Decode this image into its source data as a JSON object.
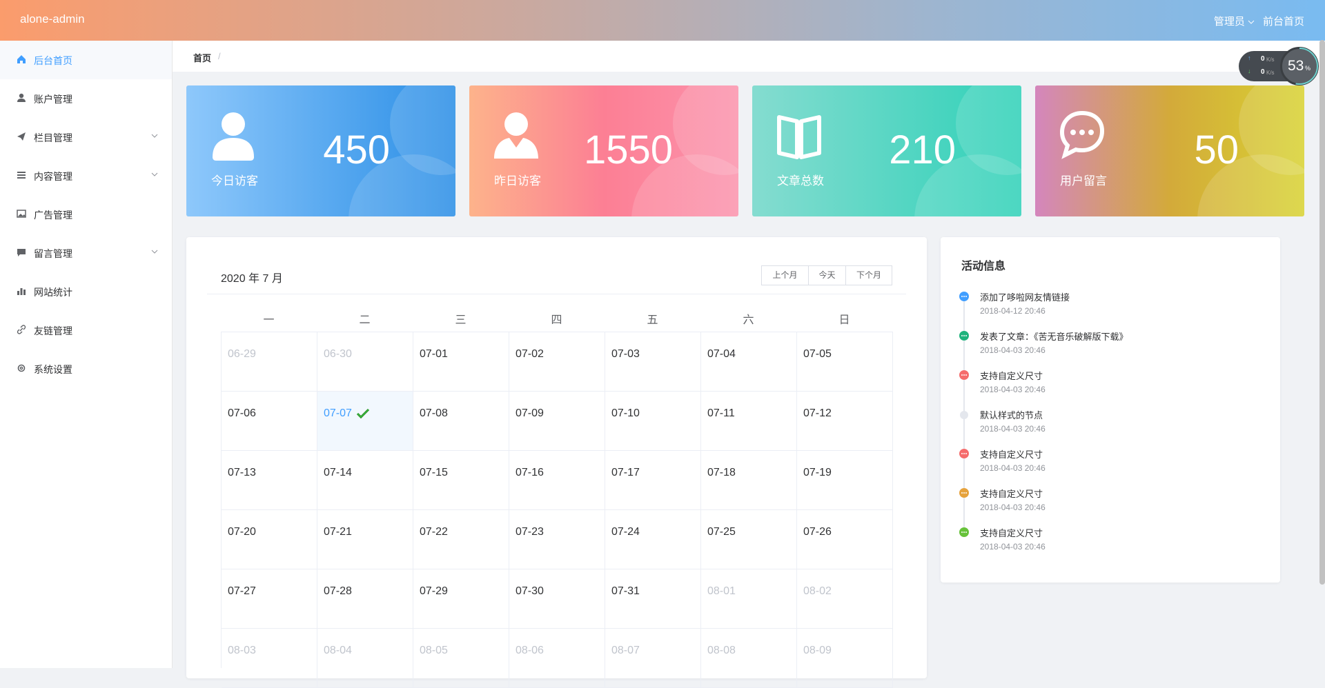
{
  "header": {
    "brand": "alone-admin",
    "user": "管理员",
    "frontpage": "前台首页"
  },
  "speed": {
    "up": "0",
    "down": "0",
    "unit": "K/s",
    "percent": "53",
    "percent_unit": "%"
  },
  "sidebar": {
    "items": [
      {
        "label": "后台首页",
        "active": true,
        "submenu": false
      },
      {
        "label": "账户管理",
        "active": false,
        "submenu": false
      },
      {
        "label": "栏目管理",
        "active": false,
        "submenu": true
      },
      {
        "label": "内容管理",
        "active": false,
        "submenu": true
      },
      {
        "label": "广告管理",
        "active": false,
        "submenu": false
      },
      {
        "label": "留言管理",
        "active": false,
        "submenu": true
      },
      {
        "label": "网站统计",
        "active": false,
        "submenu": false
      },
      {
        "label": "友链管理",
        "active": false,
        "submenu": false
      },
      {
        "label": "系统设置",
        "active": false,
        "submenu": false
      }
    ]
  },
  "breadcrumb": {
    "items": [
      "首页"
    ],
    "separator": "/"
  },
  "stats": [
    {
      "value": 450,
      "label": "今日访客"
    },
    {
      "value": 1550,
      "label": "昨日访客"
    },
    {
      "value": 210,
      "label": "文章总数"
    },
    {
      "value": 50,
      "label": "用户留言"
    }
  ],
  "calendar": {
    "title": "2020 年 7 月",
    "buttons": [
      "上个月",
      "今天",
      "下个月"
    ],
    "weekdays": [
      "一",
      "二",
      "三",
      "四",
      "五",
      "六",
      "日"
    ],
    "weeks": [
      [
        {
          "date": "06-29",
          "other": true
        },
        {
          "date": "06-30",
          "other": true
        },
        {
          "date": "07-01"
        },
        {
          "date": "07-02"
        },
        {
          "date": "07-03"
        },
        {
          "date": "07-04"
        },
        {
          "date": "07-05"
        }
      ],
      [
        {
          "date": "07-06"
        },
        {
          "date": "07-07",
          "today": true
        },
        {
          "date": "07-08"
        },
        {
          "date": "07-09"
        },
        {
          "date": "07-10"
        },
        {
          "date": "07-11"
        },
        {
          "date": "07-12"
        }
      ],
      [
        {
          "date": "07-13"
        },
        {
          "date": "07-14"
        },
        {
          "date": "07-15"
        },
        {
          "date": "07-16"
        },
        {
          "date": "07-17"
        },
        {
          "date": "07-18"
        },
        {
          "date": "07-19"
        }
      ],
      [
        {
          "date": "07-20"
        },
        {
          "date": "07-21"
        },
        {
          "date": "07-22"
        },
        {
          "date": "07-23"
        },
        {
          "date": "07-24"
        },
        {
          "date": "07-25"
        },
        {
          "date": "07-26"
        }
      ],
      [
        {
          "date": "07-27"
        },
        {
          "date": "07-28"
        },
        {
          "date": "07-29"
        },
        {
          "date": "07-30"
        },
        {
          "date": "07-31"
        },
        {
          "date": "08-01",
          "other": true
        },
        {
          "date": "08-02",
          "other": true
        }
      ],
      [
        {
          "date": "08-03",
          "other": true
        },
        {
          "date": "08-04",
          "other": true
        },
        {
          "date": "08-05",
          "other": true
        },
        {
          "date": "08-06",
          "other": true
        },
        {
          "date": "08-07",
          "other": true
        },
        {
          "date": "08-08",
          "other": true
        },
        {
          "date": "08-09",
          "other": true
        }
      ]
    ]
  },
  "activity": {
    "title": "活动信息",
    "items": [
      {
        "content": "添加了哆啦网友情链接",
        "time": "2018-04-12 20:46",
        "color": "#409eff"
      },
      {
        "content": "发表了文章：《苦无音乐破解版下载》",
        "time": "2018-04-03 20:46",
        "color": "#1fb37c"
      },
      {
        "content": "支持自定义尺寸",
        "time": "2018-04-03 20:46",
        "color": "#f56c6c"
      },
      {
        "content": "默认样式的节点",
        "time": "2018-04-03 20:46",
        "color": null
      },
      {
        "content": "支持自定义尺寸",
        "time": "2018-04-03 20:46",
        "color": "#f56c6c"
      },
      {
        "content": "支持自定义尺寸",
        "time": "2018-04-03 20:46",
        "color": "#e6a23c"
      },
      {
        "content": "支持自定义尺寸",
        "time": "2018-04-03 20:46",
        "color": "#67c23a"
      }
    ]
  }
}
